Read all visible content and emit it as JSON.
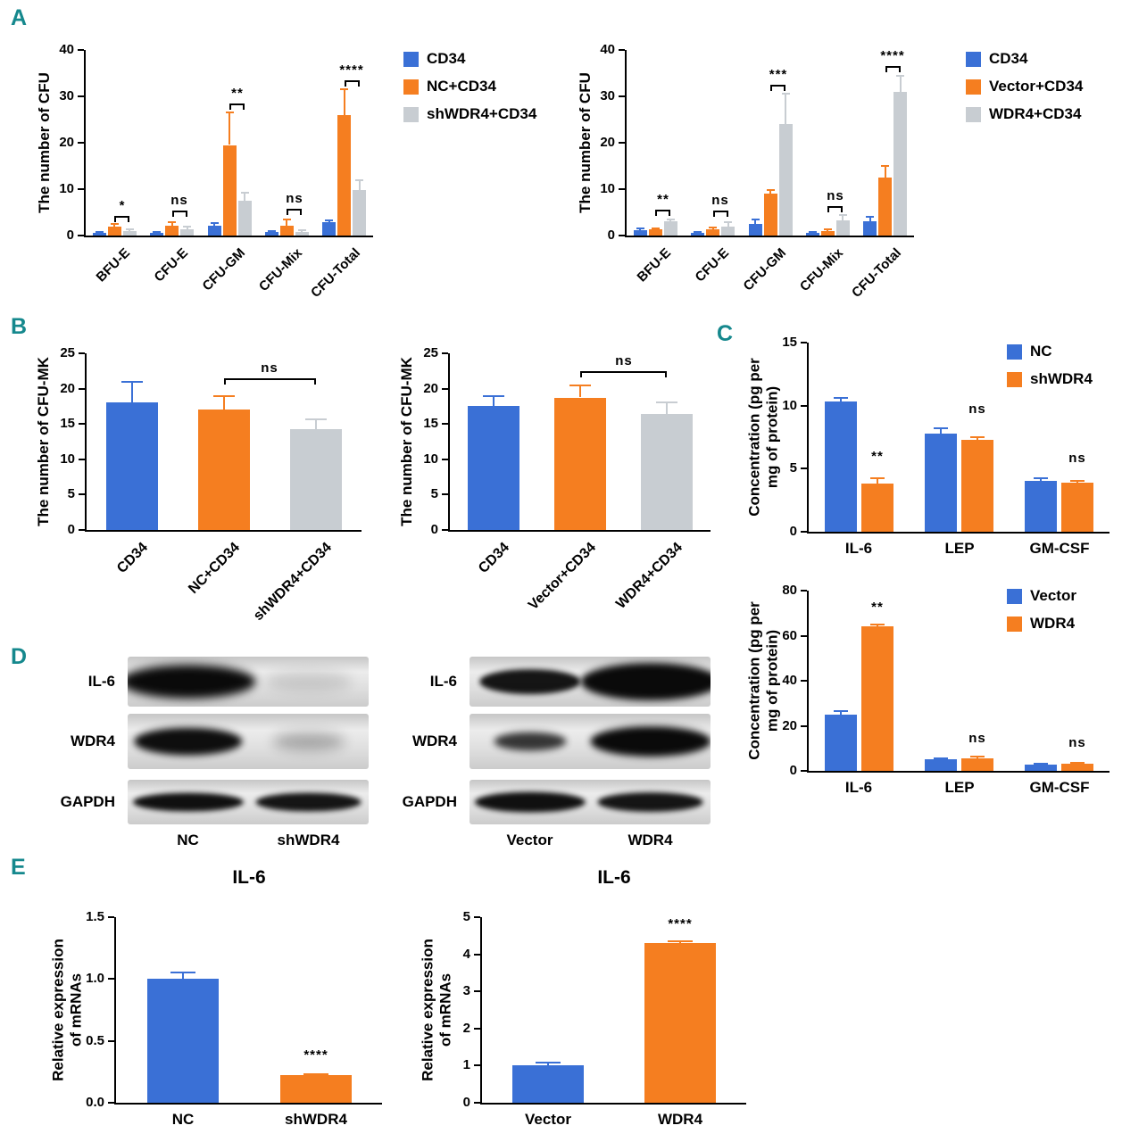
{
  "panel_letters": {
    "a": "A",
    "b": "B",
    "c": "C",
    "d": "D",
    "e": "E"
  },
  "colors": {
    "blue": "#3a70d6",
    "orange": "#f57e20",
    "gray": "#c8cdd2",
    "teal": "#15888d"
  },
  "chart_data": [
    {
      "id": "A-left",
      "type": "bar",
      "ylabel": "The number of CFU",
      "ylim": [
        0,
        40
      ],
      "yticks": [
        "0",
        "10",
        "20",
        "30",
        "40"
      ],
      "categories": [
        "BFU-E",
        "CFU-E",
        "CFU-GM",
        "CFU-Mix",
        "CFU-Total"
      ],
      "series": [
        {
          "name": "CD34",
          "color": "blue",
          "values": [
            0.5,
            0.5,
            2.2,
            0.7,
            2.8
          ],
          "errors": [
            0.2,
            0.2,
            0.5,
            0.3,
            0.5
          ]
        },
        {
          "name": "NC+CD34",
          "color": "orange",
          "values": [
            2.0,
            2.2,
            19.5,
            2.2,
            26.0
          ],
          "errors": [
            0.5,
            0.7,
            7.0,
            1.3,
            5.5
          ]
        },
        {
          "name": "shWDR4+CD34",
          "color": "gray",
          "values": [
            1.0,
            1.4,
            7.5,
            0.8,
            9.8
          ],
          "errors": [
            0.3,
            0.5,
            1.8,
            0.4,
            2.2
          ]
        }
      ],
      "annotations": [
        {
          "a": [
            0,
            1
          ],
          "b": [
            0,
            2
          ],
          "y": 4.2,
          "label": "*"
        },
        {
          "a": [
            1,
            1
          ],
          "b": [
            1,
            2
          ],
          "y": 5.4,
          "label": "ns"
        },
        {
          "a": [
            2,
            1
          ],
          "b": [
            2,
            2
          ],
          "y": 28.5,
          "label": "**"
        },
        {
          "a": [
            3,
            1
          ],
          "b": [
            3,
            2
          ],
          "y": 5.8,
          "label": "ns"
        },
        {
          "a": [
            4,
            1
          ],
          "b": [
            4,
            2
          ],
          "y": 33.5,
          "label": "****"
        }
      ]
    },
    {
      "id": "A-right",
      "type": "bar",
      "ylabel": "The number of CFU",
      "ylim": [
        0,
        40
      ],
      "yticks": [
        "0",
        "10",
        "20",
        "30",
        "40"
      ],
      "categories": [
        "BFU-E",
        "CFU-E",
        "CFU-GM",
        "CFU-Mix",
        "CFU-Total"
      ],
      "series": [
        {
          "name": "CD34",
          "color": "blue",
          "values": [
            1.2,
            0.5,
            2.5,
            0.5,
            3.0
          ],
          "errors": [
            0.3,
            0.2,
            1.0,
            0.3,
            1.0
          ]
        },
        {
          "name": "Vector+CD34",
          "color": "orange",
          "values": [
            1.3,
            1.3,
            9.0,
            1.0,
            12.5
          ],
          "errors": [
            0.3,
            0.5,
            0.8,
            0.3,
            2.5
          ]
        },
        {
          "name": "WDR4+CD34",
          "color": "gray",
          "values": [
            3.0,
            2.0,
            24.0,
            3.2,
            31.0
          ],
          "errors": [
            0.5,
            0.9,
            6.5,
            1.2,
            3.5
          ]
        }
      ],
      "annotations": [
        {
          "a": [
            0,
            1
          ],
          "b": [
            0,
            2
          ],
          "y": 5.6,
          "label": "**"
        },
        {
          "a": [
            1,
            1
          ],
          "b": [
            1,
            2
          ],
          "y": 5.4,
          "label": "ns"
        },
        {
          "a": [
            2,
            1
          ],
          "b": [
            2,
            2
          ],
          "y": 32.5,
          "label": "***"
        },
        {
          "a": [
            3,
            1
          ],
          "b": [
            3,
            2
          ],
          "y": 6.4,
          "label": "ns"
        },
        {
          "a": [
            4,
            1
          ],
          "b": [
            4,
            2
          ],
          "y": 36.5,
          "label": "****"
        }
      ]
    },
    {
      "id": "B-left",
      "type": "bar",
      "ylabel": "The number of CFU-MK",
      "ylim": [
        0,
        25
      ],
      "yticks": [
        "0",
        "5",
        "10",
        "15",
        "20",
        "25"
      ],
      "categories": [
        "CD34",
        "NC+CD34",
        "shWDR4+CD34"
      ],
      "series": [
        {
          "colors": [
            "blue",
            "orange",
            "gray"
          ],
          "values": [
            18.0,
            17.0,
            14.3
          ],
          "errors": [
            3.0,
            2.0,
            1.4
          ]
        }
      ],
      "annotations": [
        {
          "a": [
            1,
            0
          ],
          "b": [
            2,
            0
          ],
          "y": 21.5,
          "label": "ns"
        }
      ]
    },
    {
      "id": "B-right",
      "type": "bar",
      "ylabel": "The number of CFU-MK",
      "ylim": [
        0,
        25
      ],
      "yticks": [
        "0",
        "5",
        "10",
        "15",
        "20",
        "25"
      ],
      "categories": [
        "CD34",
        "Vector+CD34",
        "WDR4+CD34"
      ],
      "series": [
        {
          "colors": [
            "blue",
            "orange",
            "gray"
          ],
          "values": [
            17.5,
            18.7,
            16.4
          ],
          "errors": [
            1.5,
            1.7,
            1.7
          ]
        }
      ],
      "annotations": [
        {
          "a": [
            1,
            0
          ],
          "b": [
            2,
            0
          ],
          "y": 22.5,
          "label": "ns"
        }
      ]
    },
    {
      "id": "C-top",
      "type": "bar",
      "ylabel": "Concentration (pg per\nmg of protein)",
      "ylim": [
        0,
        15
      ],
      "yticks": [
        "0",
        "5",
        "10",
        "15"
      ],
      "categories": [
        "IL-6",
        "LEP",
        "GM-CSF"
      ],
      "series": [
        {
          "name": "NC",
          "color": "blue",
          "values": [
            10.3,
            7.8,
            4.0
          ],
          "errors": [
            0.3,
            0.4,
            0.25
          ]
        },
        {
          "name": "shWDR4",
          "color": "orange",
          "values": [
            3.8,
            7.3,
            3.9
          ],
          "errors": [
            0.45,
            0.2,
            0.15
          ]
        }
      ],
      "annotations": [
        {
          "a": [
            0,
            1
          ],
          "y": 5.2,
          "label": "**"
        },
        {
          "a": [
            1,
            1
          ],
          "y": 8.9,
          "label": "ns"
        },
        {
          "a": [
            2,
            1
          ],
          "y": 5.0,
          "label": "ns"
        }
      ]
    },
    {
      "id": "C-bottom",
      "type": "bar",
      "ylabel": "Concentration (pg per\nmg of protein)",
      "ylim": [
        0,
        80
      ],
      "yticks": [
        "0",
        "20",
        "40",
        "60",
        "80"
      ],
      "categories": [
        "IL-6",
        "LEP",
        "GM-CSF"
      ],
      "series": [
        {
          "name": "Vector",
          "color": "blue",
          "values": [
            25.0,
            5.0,
            2.8
          ],
          "errors": [
            1.5,
            0.6,
            0.4
          ]
        },
        {
          "name": "WDR4",
          "color": "orange",
          "values": [
            64.0,
            5.5,
            3.0
          ],
          "errors": [
            0.8,
            1.0,
            0.6
          ]
        }
      ],
      "annotations": [
        {
          "a": [
            0,
            1
          ],
          "y": 68.0,
          "label": "**"
        },
        {
          "a": [
            1,
            1
          ],
          "y": 10.0,
          "label": "ns"
        },
        {
          "a": [
            2,
            1
          ],
          "y": 8.0,
          "label": "ns"
        }
      ]
    },
    {
      "id": "E-left",
      "type": "bar",
      "title": "IL-6",
      "ylabel": "Relative expression\nof mRNAs",
      "ylim": [
        0,
        1.5
      ],
      "yticks": [
        "0.0",
        "0.5",
        "1.0",
        "1.5"
      ],
      "categories": [
        "NC",
        "shWDR4"
      ],
      "series": [
        {
          "colors": [
            "blue",
            "orange"
          ],
          "values": [
            1.0,
            0.22
          ],
          "errors": [
            0.05,
            0.012
          ]
        }
      ],
      "annotations": [
        {
          "a": [
            1,
            0
          ],
          "y": 0.3,
          "label": "****"
        }
      ]
    },
    {
      "id": "E-right",
      "type": "bar",
      "title": "IL-6",
      "ylabel": "Relative expression\nof mRNAs",
      "ylim": [
        0,
        5
      ],
      "yticks": [
        "0",
        "1",
        "2",
        "3",
        "4",
        "5"
      ],
      "categories": [
        "Vector",
        "WDR4"
      ],
      "series": [
        {
          "colors": [
            "blue",
            "orange"
          ],
          "values": [
            1.0,
            4.3
          ],
          "errors": [
            0.08,
            0.04
          ]
        }
      ],
      "annotations": [
        {
          "a": [
            1,
            0
          ],
          "y": 4.55,
          "label": "****"
        }
      ]
    }
  ],
  "blots": {
    "left": {
      "lanes": [
        "NC",
        "shWDR4"
      ],
      "rows": [
        {
          "label": "IL-6",
          "bands": [
            {
              "w": 0.56,
              "h": 0.68,
              "o": 1.0,
              "blur": 5
            },
            {
              "w": 0.36,
              "h": 0.4,
              "o": 0.13,
              "blur": 7
            }
          ]
        },
        {
          "label": "WDR4",
          "bands": [
            {
              "w": 0.45,
              "h": 0.5,
              "o": 0.98,
              "blur": 4
            },
            {
              "w": 0.3,
              "h": 0.32,
              "o": 0.28,
              "blur": 7
            }
          ]
        },
        {
          "label": "GAPDH",
          "bands": [
            {
              "w": 0.46,
              "h": 0.42,
              "o": 0.97,
              "blur": 3
            },
            {
              "w": 0.44,
              "h": 0.42,
              "o": 0.95,
              "blur": 3
            }
          ]
        }
      ]
    },
    "right": {
      "lanes": [
        "Vector",
        "WDR4"
      ],
      "rows": [
        {
          "label": "IL-6",
          "bands": [
            {
              "w": 0.42,
              "h": 0.5,
              "o": 0.95,
              "blur": 3
            },
            {
              "w": 0.58,
              "h": 0.75,
              "o": 1.0,
              "blur": 4
            }
          ]
        },
        {
          "label": "WDR4",
          "bands": [
            {
              "w": 0.3,
              "h": 0.34,
              "o": 0.8,
              "blur": 4
            },
            {
              "w": 0.5,
              "h": 0.55,
              "o": 1.0,
              "blur": 4
            }
          ]
        },
        {
          "label": "GAPDH",
          "bands": [
            {
              "w": 0.46,
              "h": 0.46,
              "o": 0.97,
              "blur": 3
            },
            {
              "w": 0.44,
              "h": 0.44,
              "o": 0.95,
              "blur": 3
            }
          ]
        }
      ]
    }
  }
}
